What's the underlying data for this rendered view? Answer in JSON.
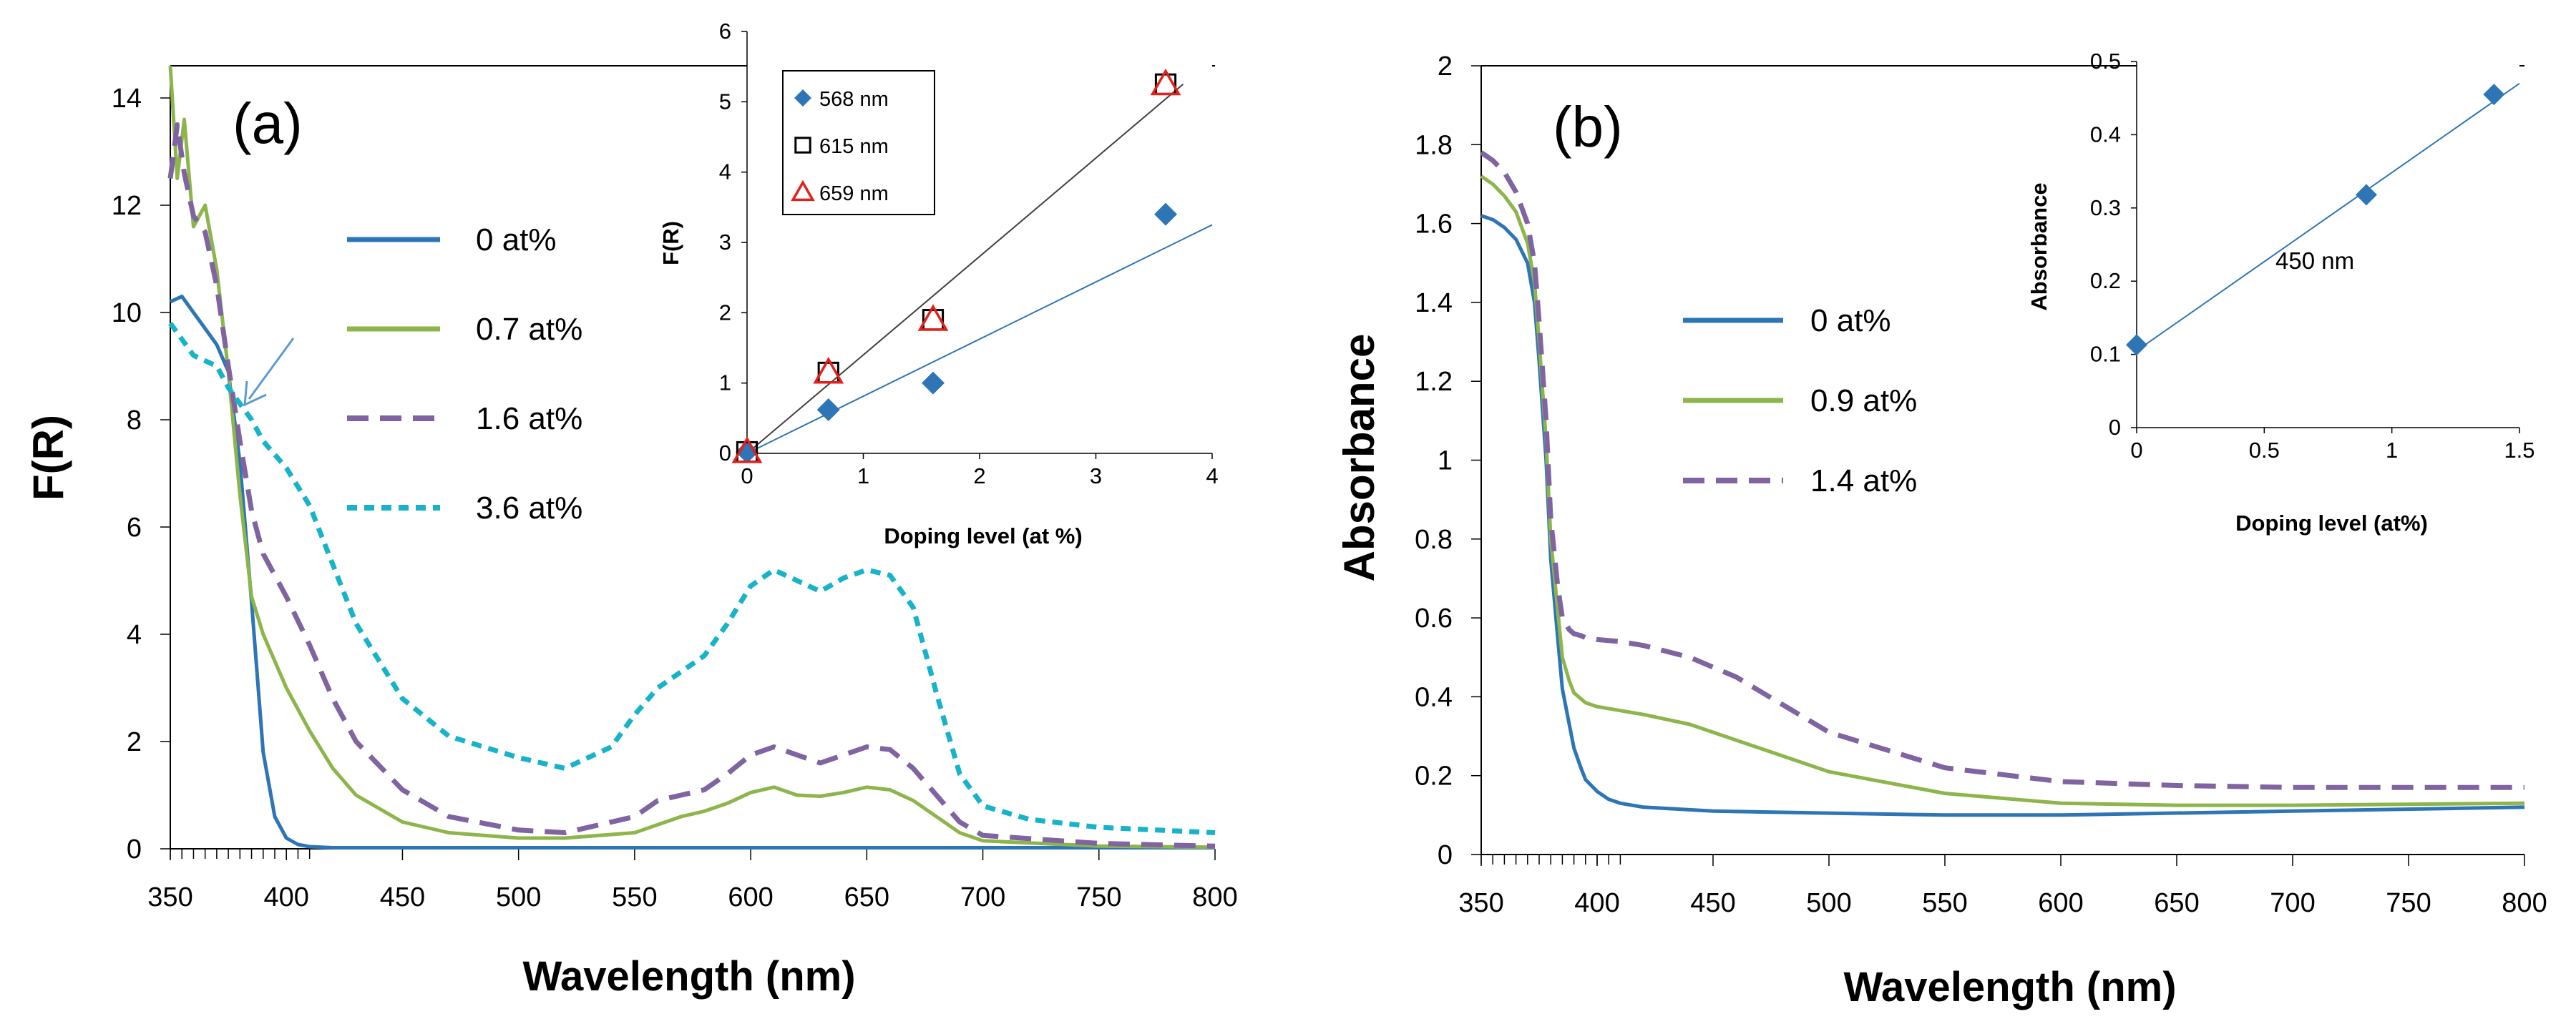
{
  "chart_data": [
    {
      "id": "a",
      "panel_label": "(a)",
      "type": "line",
      "xlabel": "Wavelength (nm)",
      "ylabel": "F(R)",
      "xlim": [
        350,
        800
      ],
      "ylim": [
        0,
        14.6
      ],
      "xticks": [
        350,
        400,
        450,
        500,
        550,
        600,
        650,
        700,
        750,
        800
      ],
      "yticks": [
        0,
        2,
        4,
        6,
        8,
        10,
        12,
        14
      ],
      "legend_position": "center-left",
      "annotation": "arrow pointing at crossing near 375 nm",
      "series": [
        {
          "name": "0 at%",
          "color": "#2E75B6",
          "dash": "solid",
          "x": [
            350,
            355,
            360,
            365,
            370,
            375,
            380,
            385,
            390,
            395,
            400,
            405,
            410,
            420,
            450,
            500,
            600,
            700,
            800
          ],
          "y": [
            10.2,
            10.3,
            10.0,
            9.7,
            9.4,
            8.9,
            7.2,
            4.6,
            1.8,
            0.6,
            0.2,
            0.08,
            0.04,
            0.02,
            0.02,
            0.02,
            0.02,
            0.02,
            0.02
          ]
        },
        {
          "name": "0.7 at%",
          "color": "#8DB54B",
          "dash": "solid",
          "x": [
            350,
            353,
            356,
            360,
            365,
            370,
            375,
            380,
            385,
            390,
            400,
            410,
            420,
            430,
            450,
            470,
            500,
            520,
            550,
            560,
            570,
            580,
            590,
            600,
            610,
            620,
            630,
            640,
            650,
            660,
            670,
            680,
            690,
            700,
            750,
            800
          ],
          "y": [
            14.6,
            12.5,
            13.6,
            11.6,
            12.0,
            10.8,
            8.9,
            6.6,
            4.7,
            4.0,
            3.0,
            2.2,
            1.5,
            1.0,
            0.5,
            0.3,
            0.2,
            0.2,
            0.3,
            0.45,
            0.6,
            0.7,
            0.85,
            1.05,
            1.15,
            1.0,
            0.98,
            1.05,
            1.15,
            1.1,
            0.9,
            0.6,
            0.3,
            0.15,
            0.05,
            0.03
          ]
        },
        {
          "name": "1.6 at%",
          "color": "#8064A2",
          "dash": "dash",
          "x": [
            350,
            353,
            356,
            360,
            365,
            370,
            375,
            380,
            385,
            390,
            400,
            410,
            420,
            430,
            450,
            470,
            500,
            520,
            550,
            560,
            570,
            580,
            590,
            600,
            610,
            620,
            630,
            640,
            650,
            660,
            670,
            680,
            690,
            700,
            750,
            800
          ],
          "y": [
            12.5,
            13.5,
            12.6,
            11.8,
            11.5,
            10.5,
            9.0,
            7.6,
            6.3,
            5.5,
            4.7,
            3.8,
            2.8,
            2.0,
            1.1,
            0.6,
            0.35,
            0.3,
            0.6,
            0.9,
            1.0,
            1.1,
            1.4,
            1.75,
            1.9,
            1.75,
            1.6,
            1.75,
            1.9,
            1.85,
            1.5,
            1.0,
            0.5,
            0.25,
            0.1,
            0.05
          ]
        },
        {
          "name": "3.6 at%",
          "color": "#17B3C9",
          "dash": "dot",
          "x": [
            350,
            355,
            360,
            365,
            370,
            375,
            380,
            385,
            390,
            400,
            410,
            420,
            430,
            450,
            470,
            500,
            520,
            540,
            550,
            560,
            570,
            580,
            590,
            600,
            610,
            620,
            630,
            640,
            650,
            660,
            670,
            680,
            690,
            700,
            720,
            750,
            800
          ],
          "y": [
            9.8,
            9.5,
            9.2,
            9.1,
            9.0,
            8.6,
            8.3,
            8.0,
            7.6,
            7.1,
            6.4,
            5.3,
            4.2,
            2.8,
            2.1,
            1.7,
            1.5,
            1.9,
            2.5,
            3.0,
            3.3,
            3.6,
            4.2,
            4.9,
            5.2,
            5.0,
            4.8,
            5.05,
            5.2,
            5.1,
            4.5,
            2.9,
            1.4,
            0.8,
            0.55,
            0.4,
            0.3
          ]
        }
      ]
    },
    {
      "id": "a-inset",
      "type": "scatter",
      "xlabel": "Doping level (at %)",
      "ylabel": "F(R)",
      "xlim": [
        0,
        4
      ],
      "ylim": [
        0,
        6
      ],
      "xticks": [
        0,
        1,
        2,
        3,
        4
      ],
      "yticks": [
        0,
        1,
        2,
        3,
        4,
        5,
        6
      ],
      "legend_position": "top-left",
      "series": [
        {
          "name": "568 nm",
          "marker": "diamond",
          "color": "#2E75B6",
          "x": [
            0,
            0.7,
            1.6,
            3.6
          ],
          "y": [
            0.02,
            0.62,
            1.0,
            3.4
          ]
        },
        {
          "name": "615 nm",
          "marker": "square",
          "color": "#000000",
          "x": [
            0,
            0.7,
            1.6,
            3.6
          ],
          "y": [
            0.02,
            1.15,
            1.9,
            5.25
          ]
        },
        {
          "name": "659 nm",
          "marker": "triangle",
          "color": "#E3201B",
          "x": [
            0,
            0.7,
            1.6,
            3.6
          ],
          "y": [
            0.02,
            1.15,
            1.9,
            5.25
          ]
        }
      ],
      "trendlines": [
        {
          "color": "#404040",
          "x": [
            0,
            3.75
          ],
          "y": [
            0,
            5.25
          ]
        },
        {
          "color": "#2E75B6",
          "x": [
            0,
            4
          ],
          "y": [
            0,
            3.25
          ]
        }
      ]
    },
    {
      "id": "b",
      "panel_label": "(b)",
      "type": "line",
      "xlabel": "Wavelength (nm)",
      "ylabel": "Absorbance",
      "xlim": [
        350,
        800
      ],
      "ylim": [
        0,
        2
      ],
      "xticks": [
        350,
        400,
        450,
        500,
        550,
        600,
        650,
        700,
        750,
        800
      ],
      "yticks": [
        0,
        0.2,
        0.4,
        0.6,
        0.8,
        1,
        1.2,
        1.4,
        1.6,
        1.8,
        2
      ],
      "legend_position": "center",
      "series": [
        {
          "name": "0 at%",
          "color": "#2E75B6",
          "dash": "solid",
          "x": [
            350,
            355,
            360,
            365,
            370,
            373,
            375,
            378,
            380,
            383,
            385,
            388,
            390,
            393,
            395,
            400,
            405,
            410,
            420,
            450,
            500,
            550,
            600,
            700,
            800
          ],
          "y": [
            1.62,
            1.61,
            1.59,
            1.56,
            1.5,
            1.4,
            1.25,
            1.0,
            0.75,
            0.55,
            0.42,
            0.33,
            0.27,
            0.22,
            0.19,
            0.16,
            0.14,
            0.13,
            0.12,
            0.11,
            0.105,
            0.1,
            0.1,
            0.11,
            0.12
          ]
        },
        {
          "name": "0.9 at%",
          "color": "#8DB54B",
          "dash": "solid",
          "x": [
            350,
            355,
            360,
            365,
            370,
            373,
            375,
            378,
            380,
            383,
            385,
            388,
            390,
            393,
            395,
            400,
            410,
            420,
            440,
            460,
            480,
            500,
            550,
            600,
            650,
            700,
            800
          ],
          "y": [
            1.72,
            1.7,
            1.67,
            1.63,
            1.55,
            1.45,
            1.3,
            1.05,
            0.8,
            0.62,
            0.5,
            0.44,
            0.41,
            0.395,
            0.385,
            0.375,
            0.365,
            0.355,
            0.33,
            0.29,
            0.25,
            0.21,
            0.155,
            0.13,
            0.125,
            0.125,
            0.13
          ]
        },
        {
          "name": "1.4 at%",
          "color": "#8064A2",
          "dash": "dash",
          "x": [
            350,
            355,
            360,
            365,
            370,
            373,
            375,
            378,
            380,
            383,
            385,
            388,
            390,
            393,
            395,
            400,
            410,
            420,
            440,
            460,
            480,
            500,
            550,
            600,
            650,
            700,
            800
          ],
          "y": [
            1.78,
            1.76,
            1.73,
            1.68,
            1.6,
            1.5,
            1.35,
            1.1,
            0.85,
            0.68,
            0.6,
            0.57,
            0.56,
            0.555,
            0.55,
            0.545,
            0.54,
            0.53,
            0.5,
            0.45,
            0.38,
            0.31,
            0.22,
            0.185,
            0.175,
            0.17,
            0.17
          ]
        }
      ]
    },
    {
      "id": "b-inset",
      "type": "scatter",
      "xlabel": "Doping level (at%)",
      "ylabel": "Absorbance",
      "xlim": [
        0,
        1.5
      ],
      "ylim": [
        0,
        0.5
      ],
      "xticks": [
        0,
        0.5,
        1,
        1.5
      ],
      "yticks": [
        0,
        0.1,
        0.2,
        0.3,
        0.4,
        0.5
      ],
      "annotation": "450 nm",
      "series": [
        {
          "name": "450 nm",
          "marker": "diamond",
          "color": "#2E75B6",
          "x": [
            0,
            0.9,
            1.4
          ],
          "y": [
            0.113,
            0.318,
            0.455
          ]
        }
      ],
      "trendlines": [
        {
          "color": "#2E75B6",
          "x": [
            0,
            1.5
          ],
          "y": [
            0.105,
            0.47
          ]
        }
      ]
    }
  ]
}
